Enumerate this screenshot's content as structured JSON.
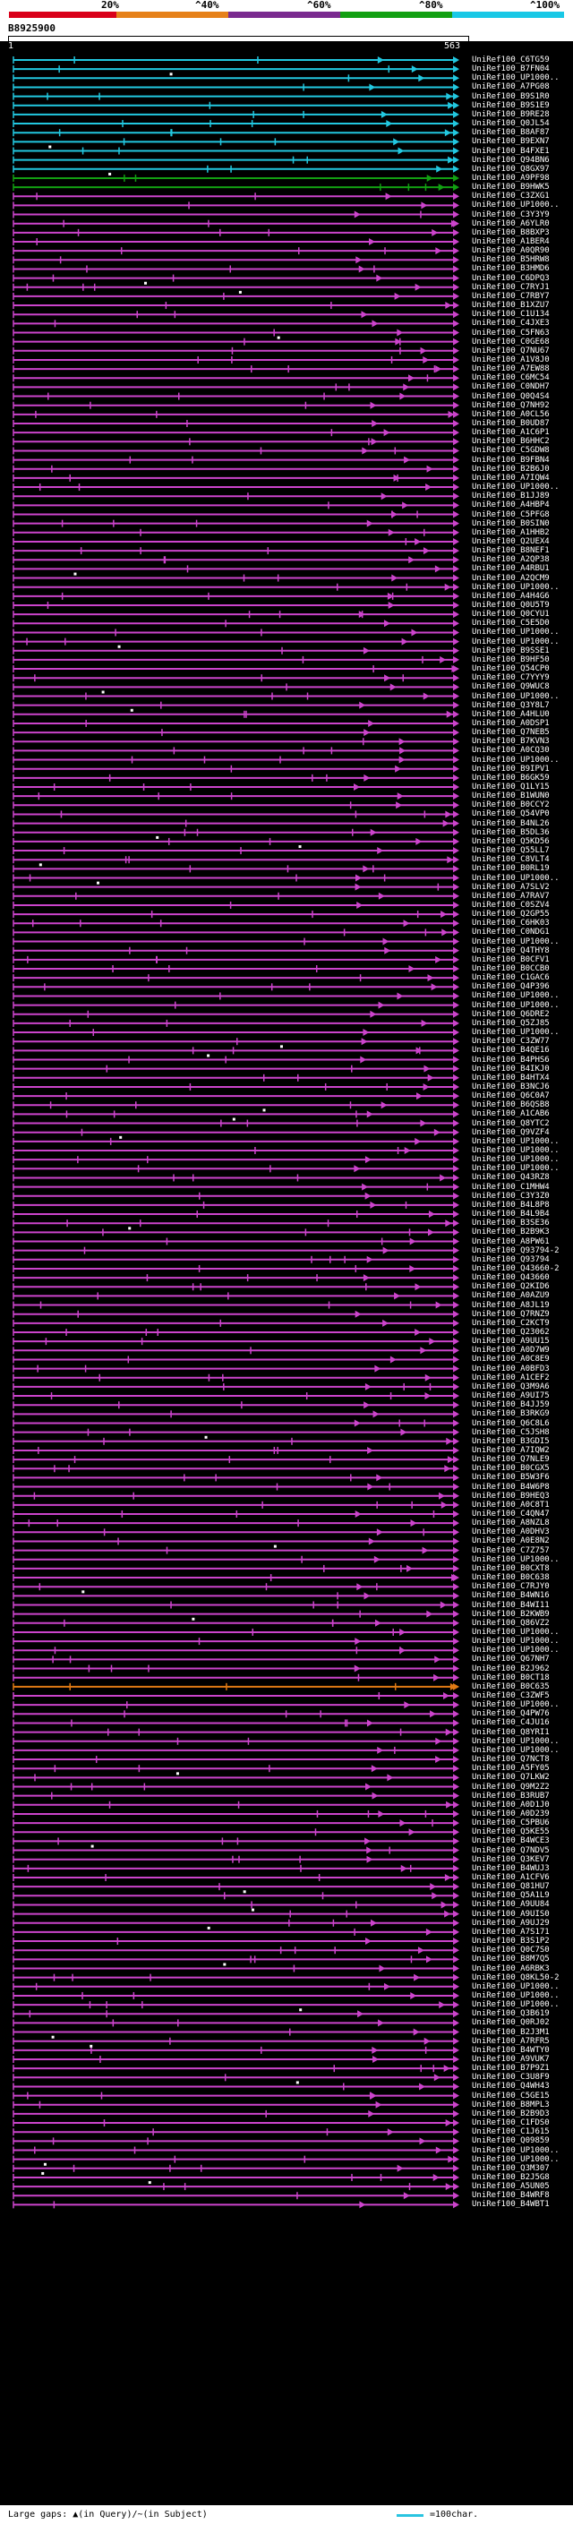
{
  "scale": {
    "labels": [
      "20%",
      "^40%",
      "^60%",
      "^80%",
      "^100%"
    ],
    "colors": {
      "red": "#d9001a",
      "orange": "#e6811a",
      "purple": "#7a2a8f",
      "green": "#12a012",
      "cyan": "#19c8e6"
    }
  },
  "query": {
    "id": "B8925900",
    "start": "1",
    "end": "563"
  },
  "colors": {
    "background": "#000000",
    "hit_magenta": "#cc44cc",
    "hit_cyan": "#22c8e0",
    "hit_green": "#12a012",
    "hit_orange": "#e07a14",
    "gap_marker": "#ffffff"
  },
  "hits": [
    {
      "label": "UniRef100_C6TG59",
      "color": "cyan"
    },
    {
      "label": "UniRef100_B7FN04",
      "color": "cyan"
    },
    {
      "label": "UniRef100_UP1000..",
      "color": "cyan"
    },
    {
      "label": "UniRef100_A7PG08",
      "color": "cyan"
    },
    {
      "label": "UniRef100_B9S1R0",
      "color": "cyan"
    },
    {
      "label": "UniRef100_B9S1E9",
      "color": "cyan"
    },
    {
      "label": "UniRef100_B9RE28",
      "color": "cyan"
    },
    {
      "label": "UniRef100_Q0JL54",
      "color": "cyan"
    },
    {
      "label": "UniRef100_B8AF87",
      "color": "cyan"
    },
    {
      "label": "UniRef100_B9EXN7",
      "color": "cyan"
    },
    {
      "label": "UniRef100_B4FXE1",
      "color": "cyan"
    },
    {
      "label": "UniRef100_Q94BN6",
      "color": "cyan"
    },
    {
      "label": "UniRef100_Q8GX97",
      "color": "cyan"
    },
    {
      "label": "UniRef100_A9PF98",
      "color": "green"
    },
    {
      "label": "UniRef100_B9HWK5",
      "color": "green"
    },
    {
      "label": "UniRef100_C3ZXG1",
      "color": "magenta"
    },
    {
      "label": "UniRef100_UP1000..",
      "color": "magenta"
    },
    {
      "label": "UniRef100_C3Y3Y9",
      "color": "magenta"
    },
    {
      "label": "UniRef100_A6YLR0",
      "color": "magenta"
    },
    {
      "label": "UniRef100_B8BXP3",
      "color": "magenta"
    },
    {
      "label": "UniRef100_A1BER4",
      "color": "magenta"
    },
    {
      "label": "UniRef100_A0QR90",
      "color": "magenta"
    },
    {
      "label": "UniRef100_B5HRW8",
      "color": "magenta"
    },
    {
      "label": "UniRef100_B3HMD6",
      "color": "magenta"
    },
    {
      "label": "UniRef100_C6DPQ3",
      "color": "magenta"
    },
    {
      "label": "UniRef100_C7RYJ1",
      "color": "magenta"
    },
    {
      "label": "UniRef100_C7RBY7",
      "color": "magenta"
    },
    {
      "label": "UniRef100_B1XZU7",
      "color": "magenta"
    },
    {
      "label": "UniRef100_C1U134",
      "color": "magenta"
    },
    {
      "label": "UniRef100_C4JXE3",
      "color": "magenta"
    },
    {
      "label": "UniRef100_C5FN63",
      "color": "magenta"
    },
    {
      "label": "UniRef100_C0GE68",
      "color": "magenta"
    },
    {
      "label": "UniRef100_Q7NU67",
      "color": "magenta"
    },
    {
      "label": "UniRef100_A1V8J0",
      "color": "magenta"
    },
    {
      "label": "UniRef100_A7EW88",
      "color": "magenta"
    },
    {
      "label": "UniRef100_C6MC54",
      "color": "magenta"
    },
    {
      "label": "UniRef100_C0NDH7",
      "color": "magenta"
    },
    {
      "label": "UniRef100_Q0Q4S4",
      "color": "magenta"
    },
    {
      "label": "UniRef100_Q7NH92",
      "color": "magenta"
    },
    {
      "label": "UniRef100_A0CL56",
      "color": "magenta"
    },
    {
      "label": "UniRef100_B0UD87",
      "color": "magenta"
    },
    {
      "label": "UniRef100_A1C6P1",
      "color": "magenta"
    },
    {
      "label": "UniRef100_B6HHC2",
      "color": "magenta"
    },
    {
      "label": "UniRef100_C5GDW8",
      "color": "magenta"
    },
    {
      "label": "UniRef100_B9FBN4",
      "color": "magenta"
    },
    {
      "label": "UniRef100_B2B6J0",
      "color": "magenta"
    },
    {
      "label": "UniRef100_A7IQW4",
      "color": "magenta"
    },
    {
      "label": "UniRef100_UP1000..",
      "color": "magenta"
    },
    {
      "label": "UniRef100_B1JJ89",
      "color": "magenta"
    },
    {
      "label": "UniRef100_A4HBP4",
      "color": "magenta"
    },
    {
      "label": "UniRef100_C5PFG8",
      "color": "magenta"
    },
    {
      "label": "UniRef100_B0SIN0",
      "color": "magenta"
    },
    {
      "label": "UniRef100_A1HHB2",
      "color": "magenta"
    },
    {
      "label": "UniRef100_Q2UEX4",
      "color": "magenta"
    },
    {
      "label": "UniRef100_B8NEF1",
      "color": "magenta"
    },
    {
      "label": "UniRef100_A2QP38",
      "color": "magenta"
    },
    {
      "label": "UniRef100_A4RBU1",
      "color": "magenta"
    },
    {
      "label": "UniRef100_A2QCM9",
      "color": "magenta"
    },
    {
      "label": "UniRef100_UP1000..",
      "color": "magenta"
    },
    {
      "label": "UniRef100_A4H4G6",
      "color": "magenta"
    },
    {
      "label": "UniRef100_Q0U5T9",
      "color": "magenta"
    },
    {
      "label": "UniRef100_Q0CYU1",
      "color": "magenta"
    },
    {
      "label": "UniRef100_C5E5D0",
      "color": "magenta"
    },
    {
      "label": "UniRef100_UP1000..",
      "color": "magenta"
    },
    {
      "label": "UniRef100_UP1000..",
      "color": "magenta"
    },
    {
      "label": "UniRef100_B9SSE1",
      "color": "magenta"
    },
    {
      "label": "UniRef100_B9HF50",
      "color": "magenta"
    },
    {
      "label": "UniRef100_Q54CP0",
      "color": "magenta"
    },
    {
      "label": "UniRef100_C7YYY9",
      "color": "magenta"
    },
    {
      "label": "UniRef100_Q9WUC8",
      "color": "magenta"
    },
    {
      "label": "UniRef100_UP1000..",
      "color": "magenta"
    },
    {
      "label": "UniRef100_Q3Y8L7",
      "color": "magenta"
    },
    {
      "label": "UniRef100_A4HLU0",
      "color": "magenta"
    },
    {
      "label": "UniRef100_A0DSP1",
      "color": "magenta"
    },
    {
      "label": "UniRef100_Q7NEB5",
      "color": "magenta"
    },
    {
      "label": "UniRef100_B7KVN3",
      "color": "magenta"
    },
    {
      "label": "UniRef100_A0CQ30",
      "color": "magenta"
    },
    {
      "label": "UniRef100_UP1000..",
      "color": "magenta"
    },
    {
      "label": "UniRef100_B9IPV1",
      "color": "magenta"
    },
    {
      "label": "UniRef100_B6GK59",
      "color": "magenta"
    },
    {
      "label": "UniRef100_Q1LY15",
      "color": "magenta"
    },
    {
      "label": "UniRef100_B1WUN0",
      "color": "magenta"
    },
    {
      "label": "UniRef100_B0CCY2",
      "color": "magenta"
    },
    {
      "label": "UniRef100_Q54VP0",
      "color": "magenta"
    },
    {
      "label": "UniRef100_B4NL26",
      "color": "magenta"
    },
    {
      "label": "UniRef100_B5DL36",
      "color": "magenta"
    },
    {
      "label": "UniRef100_Q5KD56",
      "color": "magenta"
    },
    {
      "label": "UniRef100_Q55LL7",
      "color": "magenta"
    },
    {
      "label": "UniRef100_C8VLT4",
      "color": "magenta"
    },
    {
      "label": "UniRef100_B0RL19",
      "color": "magenta"
    },
    {
      "label": "UniRef100_UP1000..",
      "color": "magenta"
    },
    {
      "label": "UniRef100_A7SLV2",
      "color": "magenta"
    },
    {
      "label": "UniRef100_A7RAV7",
      "color": "magenta"
    },
    {
      "label": "UniRef100_C0SZV4",
      "color": "magenta"
    },
    {
      "label": "UniRef100_Q2GP55",
      "color": "magenta"
    },
    {
      "label": "UniRef100_C6HK03",
      "color": "magenta"
    },
    {
      "label": "UniRef100_C0NDG1",
      "color": "magenta"
    },
    {
      "label": "UniRef100_UP1000..",
      "color": "magenta"
    },
    {
      "label": "UniRef100_Q4THY8",
      "color": "magenta"
    },
    {
      "label": "UniRef100_B0CFV1",
      "color": "magenta"
    },
    {
      "label": "UniRef100_B0CCB0",
      "color": "magenta"
    },
    {
      "label": "UniRef100_C1GAC6",
      "color": "magenta"
    },
    {
      "label": "UniRef100_Q4P396",
      "color": "magenta"
    },
    {
      "label": "UniRef100_UP1000..",
      "color": "magenta"
    },
    {
      "label": "UniRef100_UP1000..",
      "color": "magenta"
    },
    {
      "label": "UniRef100_Q6DRE2",
      "color": "magenta"
    },
    {
      "label": "UniRef100_Q5ZJ85",
      "color": "magenta"
    },
    {
      "label": "UniRef100_UP1000..",
      "color": "magenta"
    },
    {
      "label": "UniRef100_C3ZW77",
      "color": "magenta"
    },
    {
      "label": "UniRef100_B4QE16",
      "color": "magenta"
    },
    {
      "label": "UniRef100_B4PHS6",
      "color": "magenta"
    },
    {
      "label": "UniRef100_B4IKJ0",
      "color": "magenta"
    },
    {
      "label": "UniRef100_B4HTX4",
      "color": "magenta"
    },
    {
      "label": "UniRef100_B3NCJ6",
      "color": "magenta"
    },
    {
      "label": "UniRef100_Q6C0A7",
      "color": "magenta"
    },
    {
      "label": "UniRef100_B6QSB8",
      "color": "magenta"
    },
    {
      "label": "UniRef100_A1CAB6",
      "color": "magenta"
    },
    {
      "label": "UniRef100_Q8YTC2",
      "color": "magenta"
    },
    {
      "label": "UniRef100_Q9VZF4",
      "color": "magenta"
    },
    {
      "label": "UniRef100_UP1000..",
      "color": "magenta"
    },
    {
      "label": "UniRef100_UP1000..",
      "color": "magenta"
    },
    {
      "label": "UniRef100_UP1000..",
      "color": "magenta"
    },
    {
      "label": "UniRef100_UP1000..",
      "color": "magenta"
    },
    {
      "label": "UniRef100_Q43RZ8",
      "color": "magenta"
    },
    {
      "label": "UniRef100_C1MHW4",
      "color": "magenta"
    },
    {
      "label": "UniRef100_C3Y3Z0",
      "color": "magenta"
    },
    {
      "label": "UniRef100_B4L8P8",
      "color": "magenta"
    },
    {
      "label": "UniRef100_B4L9B4",
      "color": "magenta"
    },
    {
      "label": "UniRef100_B3SE36",
      "color": "magenta"
    },
    {
      "label": "UniRef100_B2B9K3",
      "color": "magenta"
    },
    {
      "label": "UniRef100_A8PW61",
      "color": "magenta"
    },
    {
      "label": "UniRef100_Q93794-2",
      "color": "magenta"
    },
    {
      "label": "UniRef100_Q93794",
      "color": "magenta"
    },
    {
      "label": "UniRef100_Q43660-2",
      "color": "magenta"
    },
    {
      "label": "UniRef100_Q43660",
      "color": "magenta"
    },
    {
      "label": "UniRef100_Q2KID6",
      "color": "magenta"
    },
    {
      "label": "UniRef100_A0AZU9",
      "color": "magenta"
    },
    {
      "label": "UniRef100_A8JL19",
      "color": "magenta"
    },
    {
      "label": "UniRef100_Q7RNZ9",
      "color": "magenta"
    },
    {
      "label": "UniRef100_C2KCT9",
      "color": "magenta"
    },
    {
      "label": "UniRef100_Q23062",
      "color": "magenta"
    },
    {
      "label": "UniRef100_A9UU15",
      "color": "magenta"
    },
    {
      "label": "UniRef100_A0D7W9",
      "color": "magenta"
    },
    {
      "label": "UniRef100_A0C8E9",
      "color": "magenta"
    },
    {
      "label": "UniRef100_A0BFD3",
      "color": "magenta"
    },
    {
      "label": "UniRef100_A1CEF2",
      "color": "magenta"
    },
    {
      "label": "UniRef100_Q3M9A6",
      "color": "magenta"
    },
    {
      "label": "UniRef100_A9UI75",
      "color": "magenta"
    },
    {
      "label": "UniRef100_B4JJ59",
      "color": "magenta"
    },
    {
      "label": "UniRef100_B3RKG9",
      "color": "magenta"
    },
    {
      "label": "UniRef100_Q6C8L6",
      "color": "magenta"
    },
    {
      "label": "UniRef100_C5JSH8",
      "color": "magenta"
    },
    {
      "label": "UniRef100_B3GDI5",
      "color": "magenta"
    },
    {
      "label": "UniRef100_A7IQW2",
      "color": "magenta"
    },
    {
      "label": "UniRef100_Q7NLE9",
      "color": "magenta"
    },
    {
      "label": "UniRef100_B0CGX5",
      "color": "magenta"
    },
    {
      "label": "UniRef100_B5W3F6",
      "color": "magenta"
    },
    {
      "label": "UniRef100_B4W6P8",
      "color": "magenta"
    },
    {
      "label": "UniRef100_B9HEQ3",
      "color": "magenta"
    },
    {
      "label": "UniRef100_A0C8T1",
      "color": "magenta"
    },
    {
      "label": "UniRef100_C4QN47",
      "color": "magenta"
    },
    {
      "label": "UniRef100_A8NZL8",
      "color": "magenta"
    },
    {
      "label": "UniRef100_A0DHV3",
      "color": "magenta"
    },
    {
      "label": "UniRef100_A0E8N2",
      "color": "magenta"
    },
    {
      "label": "UniRef100_C7Z757",
      "color": "magenta"
    },
    {
      "label": "UniRef100_UP1000..",
      "color": "magenta"
    },
    {
      "label": "UniRef100_B0CXT8",
      "color": "magenta"
    },
    {
      "label": "UniRef100_B0C638",
      "color": "magenta"
    },
    {
      "label": "UniRef100_C7RJY0",
      "color": "magenta"
    },
    {
      "label": "UniRef100_B4WN16",
      "color": "magenta"
    },
    {
      "label": "UniRef100_B4WI11",
      "color": "magenta"
    },
    {
      "label": "UniRef100_B2KWB9",
      "color": "magenta"
    },
    {
      "label": "UniRef100_Q86VZ2",
      "color": "magenta"
    },
    {
      "label": "UniRef100_UP1000..",
      "color": "magenta"
    },
    {
      "label": "UniRef100_UP1000..",
      "color": "magenta"
    },
    {
      "label": "UniRef100_UP1000..",
      "color": "magenta"
    },
    {
      "label": "UniRef100_Q67NH7",
      "color": "magenta"
    },
    {
      "label": "UniRef100_B2J962",
      "color": "magenta"
    },
    {
      "label": "UniRef100_B0CT18",
      "color": "magenta"
    },
    {
      "label": "UniRef100_B0C635",
      "color": "orange"
    },
    {
      "label": "UniRef100_C3ZWF5",
      "color": "magenta"
    },
    {
      "label": "UniRef100_UP1000..",
      "color": "magenta"
    },
    {
      "label": "UniRef100_Q4PW76",
      "color": "magenta"
    },
    {
      "label": "UniRef100_C4JU16",
      "color": "magenta"
    },
    {
      "label": "UniRef100_Q8YRI1",
      "color": "magenta"
    },
    {
      "label": "UniRef100_UP1000..",
      "color": "magenta"
    },
    {
      "label": "UniRef100_UP1000..",
      "color": "magenta"
    },
    {
      "label": "UniRef100_Q7NCT8",
      "color": "magenta"
    },
    {
      "label": "UniRef100_A5FY05",
      "color": "magenta"
    },
    {
      "label": "UniRef100_Q7LKW2",
      "color": "magenta"
    },
    {
      "label": "UniRef100_Q9M2Z2",
      "color": "magenta"
    },
    {
      "label": "UniRef100_B3RUB7",
      "color": "magenta"
    },
    {
      "label": "UniRef100_A0D1J0",
      "color": "magenta"
    },
    {
      "label": "UniRef100_A0D239",
      "color": "magenta"
    },
    {
      "label": "UniRef100_C5PBU6",
      "color": "magenta"
    },
    {
      "label": "UniRef100_Q5KE55",
      "color": "magenta"
    },
    {
      "label": "UniRef100_B4WCE3",
      "color": "magenta"
    },
    {
      "label": "UniRef100_Q7NDV5",
      "color": "magenta"
    },
    {
      "label": "UniRef100_Q3KEV7",
      "color": "magenta"
    },
    {
      "label": "UniRef100_B4WUJ3",
      "color": "magenta"
    },
    {
      "label": "UniRef100_A1CFV6",
      "color": "magenta"
    },
    {
      "label": "UniRef100_Q81HU7",
      "color": "magenta"
    },
    {
      "label": "UniRef100_Q5A1L9",
      "color": "magenta"
    },
    {
      "label": "UniRef100_A9UU84",
      "color": "magenta"
    },
    {
      "label": "UniRef100_A9UIS0",
      "color": "magenta"
    },
    {
      "label": "UniRef100_A9UJ29",
      "color": "magenta"
    },
    {
      "label": "UniRef100_A7S171",
      "color": "magenta"
    },
    {
      "label": "UniRef100_B3S1P2",
      "color": "magenta"
    },
    {
      "label": "UniRef100_Q0C7S0",
      "color": "magenta"
    },
    {
      "label": "UniRef100_B8M7Q5",
      "color": "magenta"
    },
    {
      "label": "UniRef100_A6RBK3",
      "color": "magenta"
    },
    {
      "label": "UniRef100_Q8KL50-2",
      "color": "magenta"
    },
    {
      "label": "UniRef100_UP1000..",
      "color": "magenta"
    },
    {
      "label": "UniRef100_UP1000..",
      "color": "magenta"
    },
    {
      "label": "UniRef100_UP1000..",
      "color": "magenta"
    },
    {
      "label": "UniRef100_Q3B619",
      "color": "magenta"
    },
    {
      "label": "UniRef100_Q0RJ02",
      "color": "magenta"
    },
    {
      "label": "UniRef100_B2J3M1",
      "color": "magenta"
    },
    {
      "label": "UniRef100_A7RFR5",
      "color": "magenta"
    },
    {
      "label": "UniRef100_B4WTY0",
      "color": "magenta"
    },
    {
      "label": "UniRef100_A9VUK7",
      "color": "magenta"
    },
    {
      "label": "UniRef100_B7P9Z1",
      "color": "magenta"
    },
    {
      "label": "UniRef100_C3U8F9",
      "color": "magenta"
    },
    {
      "label": "UniRef100_Q4WH43",
      "color": "magenta"
    },
    {
      "label": "UniRef100_C5GE15",
      "color": "magenta"
    },
    {
      "label": "UniRef100_B8MPL3",
      "color": "magenta"
    },
    {
      "label": "UniRef100_B2B9D3",
      "color": "magenta"
    },
    {
      "label": "UniRef100_C1FDS0",
      "color": "magenta"
    },
    {
      "label": "UniRef100_C1J615",
      "color": "magenta"
    },
    {
      "label": "UniRef100_Q09859",
      "color": "magenta"
    },
    {
      "label": "UniRef100_UP1000..",
      "color": "magenta"
    },
    {
      "label": "UniRef100_UP1000..",
      "color": "magenta"
    },
    {
      "label": "UniRef100_Q3M307",
      "color": "magenta"
    },
    {
      "label": "UniRef100_B2J5G8",
      "color": "magenta"
    },
    {
      "label": "UniRef100_A5UN05",
      "color": "magenta"
    },
    {
      "label": "UniRef100_B4WRF8",
      "color": "magenta"
    },
    {
      "label": "UniRef100_B4WBT1",
      "color": "magenta"
    }
  ],
  "legend": {
    "text": "Large gaps: ▲(in Query)/~(in Subject)",
    "scale_text": "=100char."
  }
}
